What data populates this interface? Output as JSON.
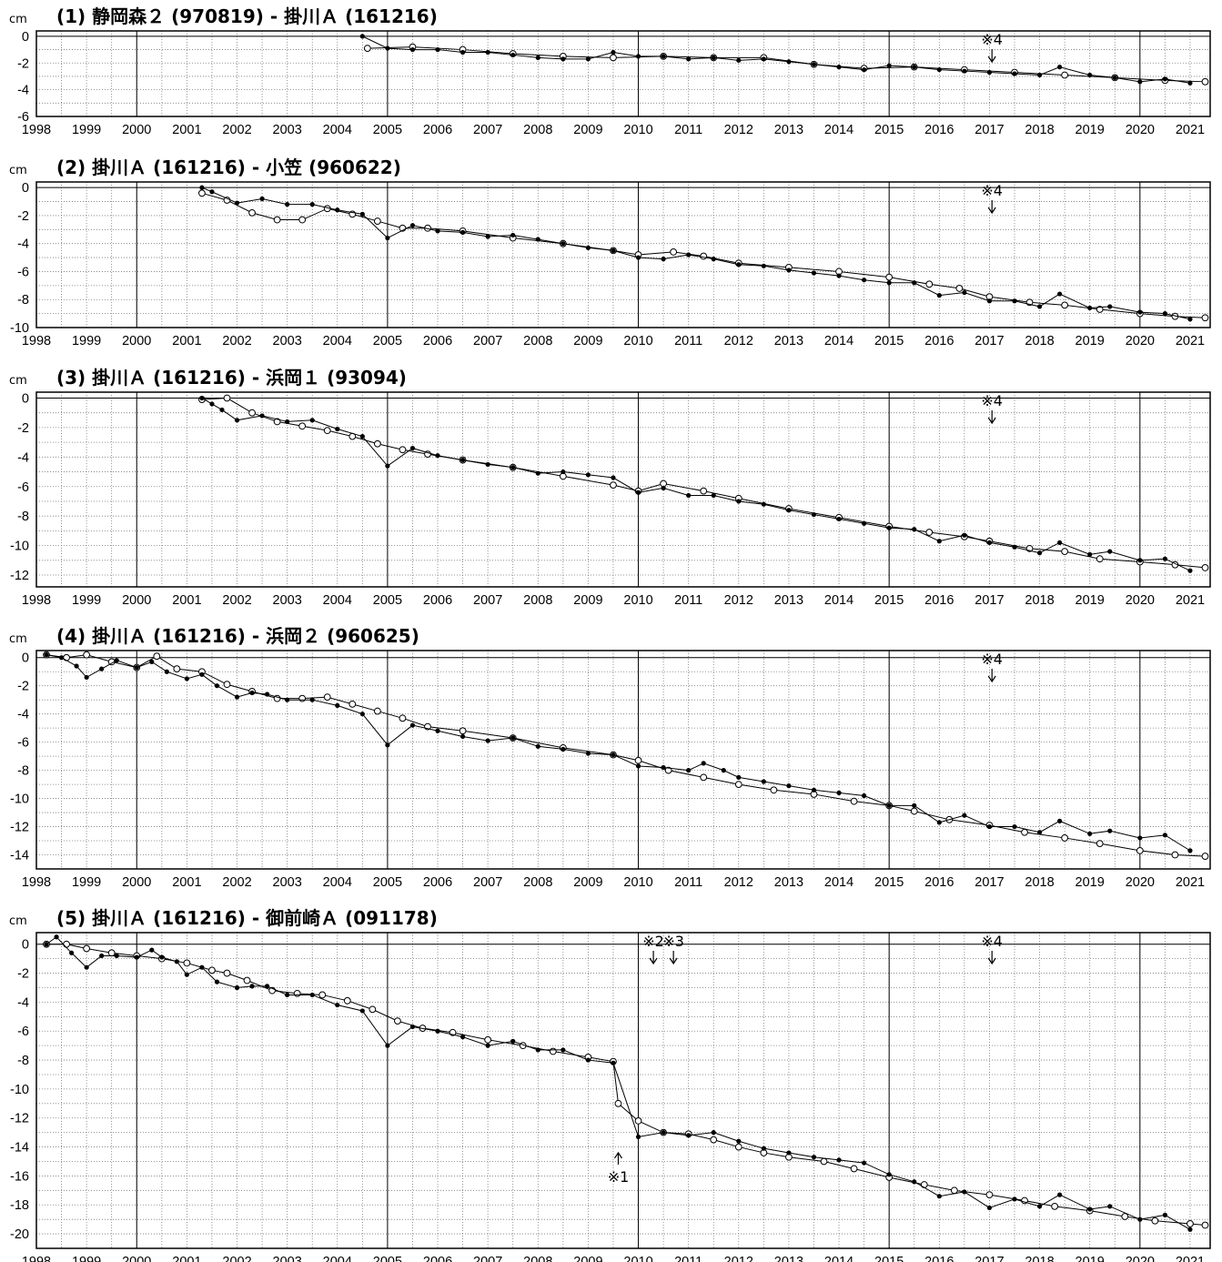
{
  "chart_data": [
    {
      "type": "line",
      "title": "(1) 静岡森２ (970819) - 掛川Ａ (161216)",
      "ylabel": "cm",
      "xlim": [
        1998,
        2021.4
      ],
      "ylim": [
        -6,
        0.4
      ],
      "yticks": [
        "0",
        "-2",
        "-4",
        "-6"
      ],
      "ytick_values": [
        0,
        -2,
        -4,
        -6
      ],
      "grid": true,
      "series": [
        {
          "marker": "open-circle",
          "x": [
            2004.6,
            2005.5,
            2006.5,
            2007.5,
            2008.5,
            2009.5,
            2010.5,
            2011.5,
            2012.5,
            2013.5,
            2014.5,
            2015.5,
            2016.5,
            2017.5,
            2018.5,
            2019.5,
            2020.5,
            2021.3
          ],
          "y": [
            -0.9,
            -0.8,
            -1.0,
            -1.3,
            -1.5,
            -1.6,
            -1.5,
            -1.6,
            -1.6,
            -2.1,
            -2.4,
            -2.3,
            -2.5,
            -2.7,
            -2.9,
            -3.1,
            -3.3,
            -3.4
          ]
        },
        {
          "marker": "filled-dot",
          "x": [
            2004.5,
            2005.0,
            2005.5,
            2006.0,
            2006.5,
            2007.0,
            2007.5,
            2008.0,
            2008.5,
            2009.0,
            2009.5,
            2010.0,
            2010.5,
            2011.0,
            2011.5,
            2012.0,
            2012.5,
            2013.0,
            2013.5,
            2014.0,
            2014.5,
            2015.0,
            2015.5,
            2016.0,
            2016.5,
            2017.0,
            2017.5,
            2018.0,
            2018.4,
            2019.0,
            2019.5,
            2020.0,
            2020.5,
            2021.0
          ],
          "y": [
            0.0,
            -0.9,
            -1.0,
            -1.0,
            -1.2,
            -1.2,
            -1.4,
            -1.6,
            -1.7,
            -1.7,
            -1.2,
            -1.5,
            -1.5,
            -1.7,
            -1.6,
            -1.8,
            -1.7,
            -1.9,
            -2.1,
            -2.3,
            -2.5,
            -2.2,
            -2.3,
            -2.5,
            -2.6,
            -2.7,
            -2.8,
            -2.9,
            -2.3,
            -2.9,
            -3.1,
            -3.4,
            -3.2,
            -3.5
          ]
        }
      ],
      "annotations": [
        {
          "text": "※4",
          "x": 2017.05,
          "direction": "down"
        }
      ]
    },
    {
      "type": "line",
      "title": "(2) 掛川Ａ (161216) - 小笠 (960622)",
      "ylabel": "cm",
      "xlim": [
        1998,
        2021.4
      ],
      "ylim": [
        -10,
        0.4
      ],
      "yticks": [
        "0",
        "-2",
        "-4",
        "-6",
        "-8",
        "-10"
      ],
      "ytick_values": [
        0,
        -2,
        -4,
        -6,
        -8,
        -10
      ],
      "grid": true,
      "series": [
        {
          "marker": "open-circle",
          "x": [
            2001.3,
            2001.8,
            2002.3,
            2002.8,
            2003.3,
            2003.8,
            2004.3,
            2004.8,
            2005.3,
            2005.8,
            2006.5,
            2007.5,
            2008.5,
            2009.5,
            2010.0,
            2010.7,
            2011.3,
            2012.0,
            2013.0,
            2014.0,
            2015.0,
            2015.8,
            2016.4,
            2017.0,
            2017.8,
            2018.5,
            2019.2,
            2020.0,
            2020.7,
            2021.3
          ],
          "y": [
            -0.4,
            -0.9,
            -1.8,
            -2.3,
            -2.3,
            -1.5,
            -1.9,
            -2.4,
            -2.9,
            -2.9,
            -3.1,
            -3.6,
            -4.0,
            -4.5,
            -4.8,
            -4.6,
            -4.9,
            -5.4,
            -5.7,
            -6.0,
            -6.4,
            -6.9,
            -7.2,
            -7.8,
            -8.2,
            -8.4,
            -8.7,
            -9.0,
            -9.2,
            -9.3
          ]
        },
        {
          "marker": "filled-dot",
          "x": [
            2001.3,
            2001.5,
            2002.0,
            2002.5,
            2003.0,
            2003.5,
            2004.0,
            2004.5,
            2005.0,
            2005.5,
            2006.0,
            2006.5,
            2007.0,
            2007.5,
            2008.0,
            2008.5,
            2009.0,
            2009.5,
            2010.0,
            2010.5,
            2011.0,
            2011.5,
            2012.0,
            2012.5,
            2013.0,
            2013.5,
            2014.0,
            2014.5,
            2015.0,
            2015.5,
            2016.0,
            2016.5,
            2017.0,
            2017.5,
            2018.0,
            2018.4,
            2019.0,
            2019.4,
            2020.0,
            2020.5,
            2021.0
          ],
          "y": [
            0.0,
            -0.3,
            -1.1,
            -0.8,
            -1.2,
            -1.2,
            -1.6,
            -1.9,
            -3.6,
            -2.7,
            -3.1,
            -3.2,
            -3.5,
            -3.4,
            -3.7,
            -4.0,
            -4.3,
            -4.5,
            -5.0,
            -5.1,
            -4.8,
            -5.1,
            -5.5,
            -5.6,
            -5.9,
            -6.1,
            -6.3,
            -6.6,
            -6.8,
            -6.8,
            -7.7,
            -7.5,
            -8.1,
            -8.1,
            -8.5,
            -7.6,
            -8.6,
            -8.5,
            -8.9,
            -9.0,
            -9.4
          ]
        }
      ],
      "annotations": [
        {
          "text": "※4",
          "x": 2017.05,
          "direction": "down"
        }
      ]
    },
    {
      "type": "line",
      "title": "(3) 掛川Ａ (161216) - 浜岡１ (93094)",
      "ylabel": "cm",
      "xlim": [
        1998,
        2021.4
      ],
      "ylim": [
        -12.8,
        0.4
      ],
      "yticks": [
        "0",
        "-2",
        "-4",
        "-6",
        "-8",
        "-10",
        "-12"
      ],
      "ytick_values": [
        0,
        -2,
        -4,
        -6,
        -8,
        -10,
        -12
      ],
      "grid": true,
      "series": [
        {
          "marker": "open-circle",
          "x": [
            2001.3,
            2001.8,
            2002.3,
            2002.8,
            2003.3,
            2003.8,
            2004.3,
            2004.8,
            2005.3,
            2005.8,
            2006.5,
            2007.5,
            2008.5,
            2009.5,
            2010.0,
            2010.5,
            2011.3,
            2012.0,
            2013.0,
            2014.0,
            2015.0,
            2015.8,
            2016.5,
            2017.0,
            2017.8,
            2018.5,
            2019.2,
            2020.0,
            2020.7,
            2021.3
          ],
          "y": [
            -0.1,
            0.0,
            -1.0,
            -1.6,
            -1.9,
            -2.2,
            -2.6,
            -3.1,
            -3.5,
            -3.8,
            -4.2,
            -4.7,
            -5.3,
            -5.9,
            -6.3,
            -5.8,
            -6.3,
            -6.8,
            -7.5,
            -8.1,
            -8.7,
            -9.1,
            -9.4,
            -9.7,
            -10.2,
            -10.4,
            -10.9,
            -11.1,
            -11.3,
            -11.5
          ]
        },
        {
          "marker": "filled-dot",
          "x": [
            2001.3,
            2001.5,
            2001.7,
            2002.0,
            2002.5,
            2003.0,
            2003.5,
            2004.0,
            2004.5,
            2005.0,
            2005.5,
            2006.0,
            2006.5,
            2007.0,
            2007.5,
            2008.0,
            2008.5,
            2009.0,
            2009.5,
            2010.0,
            2010.5,
            2011.0,
            2011.5,
            2012.0,
            2012.5,
            2013.0,
            2013.5,
            2014.0,
            2014.5,
            2015.0,
            2015.5,
            2016.0,
            2016.5,
            2017.0,
            2017.5,
            2018.0,
            2018.4,
            2019.0,
            2019.4,
            2020.0,
            2020.5,
            2021.0
          ],
          "y": [
            0.0,
            -0.4,
            -0.8,
            -1.5,
            -1.2,
            -1.6,
            -1.5,
            -2.1,
            -2.6,
            -4.6,
            -3.4,
            -3.9,
            -4.2,
            -4.5,
            -4.7,
            -5.1,
            -5.0,
            -5.2,
            -5.4,
            -6.4,
            -6.1,
            -6.6,
            -6.6,
            -7.0,
            -7.2,
            -7.6,
            -7.9,
            -8.2,
            -8.5,
            -8.8,
            -8.9,
            -9.7,
            -9.3,
            -9.8,
            -10.1,
            -10.5,
            -9.8,
            -10.6,
            -10.4,
            -11.0,
            -10.9,
            -11.7
          ]
        }
      ],
      "annotations": [
        {
          "text": "※4",
          "x": 2017.05,
          "direction": "down"
        }
      ]
    },
    {
      "type": "line",
      "title": "(4) 掛川Ａ (161216) - 浜岡２ (960625)",
      "ylabel": "cm",
      "xlim": [
        1998,
        2021.4
      ],
      "ylim": [
        -15,
        0.5
      ],
      "yticks": [
        "0",
        "-2",
        "-4",
        "-6",
        "-8",
        "-10",
        "-12",
        "-14"
      ],
      "ytick_values": [
        0,
        -2,
        -4,
        -6,
        -8,
        -10,
        -12,
        -14
      ],
      "grid": true,
      "series": [
        {
          "marker": "open-circle",
          "x": [
            1998.2,
            1998.6,
            1999.0,
            1999.5,
            2000.0,
            2000.4,
            2000.8,
            2001.3,
            2001.8,
            2002.3,
            2002.8,
            2003.3,
            2003.8,
            2004.3,
            2004.8,
            2005.3,
            2005.8,
            2006.5,
            2007.5,
            2008.5,
            2009.5,
            2010.0,
            2010.6,
            2011.3,
            2012.0,
            2012.7,
            2013.5,
            2014.3,
            2015.0,
            2015.5,
            2016.2,
            2017.0,
            2017.7,
            2018.5,
            2019.2,
            2020.0,
            2020.7,
            2021.3
          ],
          "y": [
            0.2,
            0.0,
            0.2,
            -0.3,
            -0.7,
            0.1,
            -0.8,
            -1.0,
            -1.9,
            -2.4,
            -2.9,
            -2.9,
            -2.8,
            -3.3,
            -3.8,
            -4.3,
            -4.9,
            -5.2,
            -5.7,
            -6.4,
            -6.9,
            -7.3,
            -8.0,
            -8.5,
            -9.0,
            -9.4,
            -9.7,
            -10.2,
            -10.5,
            -10.9,
            -11.5,
            -11.9,
            -12.4,
            -12.8,
            -13.2,
            -13.7,
            -14.0,
            -14.1
          ]
        },
        {
          "marker": "filled-dot",
          "x": [
            1998.2,
            1998.5,
            1998.8,
            1999.0,
            1999.3,
            1999.6,
            2000.0,
            2000.3,
            2000.6,
            2001.0,
            2001.3,
            2001.6,
            2002.0,
            2002.3,
            2002.6,
            2003.0,
            2003.5,
            2004.0,
            2004.5,
            2005.0,
            2005.5,
            2006.0,
            2006.5,
            2007.0,
            2007.5,
            2008.0,
            2008.5,
            2009.0,
            2009.5,
            2010.0,
            2010.5,
            2011.0,
            2011.3,
            2011.7,
            2012.0,
            2012.5,
            2013.0,
            2013.5,
            2014.0,
            2014.5,
            2015.0,
            2015.5,
            2016.0,
            2016.5,
            2017.0,
            2017.5,
            2018.0,
            2018.4,
            2019.0,
            2019.4,
            2020.0,
            2020.5,
            2021.0
          ],
          "y": [
            0.2,
            0.0,
            -0.6,
            -1.4,
            -0.8,
            -0.2,
            -0.7,
            -0.3,
            -1.0,
            -1.5,
            -1.2,
            -2.0,
            -2.8,
            -2.5,
            -2.6,
            -3.0,
            -3.0,
            -3.4,
            -4.0,
            -6.2,
            -4.8,
            -5.2,
            -5.6,
            -5.9,
            -5.7,
            -6.3,
            -6.5,
            -6.8,
            -6.9,
            -7.7,
            -7.8,
            -8.0,
            -7.5,
            -8.0,
            -8.5,
            -8.8,
            -9.1,
            -9.4,
            -9.6,
            -9.8,
            -10.5,
            -10.5,
            -11.7,
            -11.2,
            -12.0,
            -12.0,
            -12.4,
            -11.6,
            -12.5,
            -12.3,
            -12.8,
            -12.6,
            -13.7
          ]
        }
      ],
      "annotations": [
        {
          "text": "※4",
          "x": 2017.05,
          "direction": "down"
        }
      ]
    },
    {
      "type": "line",
      "title": "(5) 掛川Ａ (161216) - 御前崎Ａ (091178)",
      "ylabel": "cm",
      "xlim": [
        1998,
        2021.4
      ],
      "ylim": [
        -21,
        0.8
      ],
      "yticks": [
        "0",
        "-2",
        "-4",
        "-6",
        "-8",
        "-10",
        "-12",
        "-14",
        "-16",
        "-18",
        "-20"
      ],
      "ytick_values": [
        0,
        -2,
        -4,
        -6,
        -8,
        -10,
        -12,
        -14,
        -16,
        -18,
        -20
      ],
      "grid": true,
      "series": [
        {
          "marker": "open-circle",
          "x": [
            1998.2,
            1998.6,
            1999.0,
            1999.5,
            2000.0,
            2000.5,
            2001.0,
            2001.5,
            2001.8,
            2002.2,
            2002.7,
            2003.2,
            2003.7,
            2004.2,
            2004.7,
            2005.2,
            2005.7,
            2006.3,
            2007.0,
            2007.7,
            2008.3,
            2009.0,
            2009.5,
            2009.6,
            2010.0,
            2010.5,
            2011.0,
            2011.5,
            2012.0,
            2012.5,
            2013.0,
            2013.7,
            2014.3,
            2015.0,
            2015.7,
            2016.3,
            2017.0,
            2017.7,
            2018.3,
            2019.0,
            2019.7,
            2020.3,
            2021.0,
            2021.3
          ],
          "y": [
            0.0,
            0.0,
            -0.3,
            -0.6,
            -0.8,
            -1.0,
            -1.3,
            -1.8,
            -2.0,
            -2.5,
            -3.2,
            -3.4,
            -3.5,
            -3.9,
            -4.5,
            -5.3,
            -5.8,
            -6.1,
            -6.6,
            -7.0,
            -7.4,
            -7.8,
            -8.1,
            -11.0,
            -12.2,
            -13.0,
            -13.1,
            -13.5,
            -14.0,
            -14.4,
            -14.7,
            -15.0,
            -15.5,
            -16.1,
            -16.6,
            -17.0,
            -17.3,
            -17.7,
            -18.1,
            -18.4,
            -18.8,
            -19.1,
            -19.3,
            -19.4
          ]
        },
        {
          "marker": "filled-dot",
          "x": [
            1998.2,
            1998.4,
            1998.7,
            1999.0,
            1999.3,
            1999.6,
            2000.0,
            2000.3,
            2000.5,
            2000.8,
            2001.0,
            2001.3,
            2001.6,
            2002.0,
            2002.3,
            2002.6,
            2003.0,
            2003.5,
            2004.0,
            2004.5,
            2005.0,
            2005.5,
            2006.0,
            2006.5,
            2007.0,
            2007.5,
            2008.0,
            2008.5,
            2009.0,
            2009.5,
            2010.0,
            2010.5,
            2011.0,
            2011.5,
            2012.0,
            2012.5,
            2013.0,
            2013.5,
            2014.0,
            2014.5,
            2015.0,
            2015.5,
            2016.0,
            2016.5,
            2017.0,
            2017.5,
            2018.0,
            2018.4,
            2019.0,
            2019.4,
            2020.0,
            2020.5,
            2021.0
          ],
          "y": [
            0.0,
            0.5,
            -0.6,
            -1.6,
            -0.8,
            -0.8,
            -0.9,
            -0.4,
            -0.9,
            -1.2,
            -2.1,
            -1.6,
            -2.6,
            -3.0,
            -2.9,
            -2.9,
            -3.5,
            -3.5,
            -4.2,
            -4.6,
            -7.0,
            -5.7,
            -6.0,
            -6.4,
            -7.0,
            -6.7,
            -7.3,
            -7.3,
            -8.0,
            -8.2,
            -13.3,
            -13.0,
            -13.2,
            -13.0,
            -13.6,
            -14.1,
            -14.4,
            -14.7,
            -14.9,
            -15.1,
            -15.9,
            -16.4,
            -17.4,
            -17.1,
            -18.2,
            -17.6,
            -18.1,
            -17.3,
            -18.3,
            -18.1,
            -19.0,
            -18.7,
            -19.7
          ]
        }
      ],
      "annotations": [
        {
          "text": "※1",
          "x": 2009.6,
          "direction": "up"
        },
        {
          "text": "※2",
          "x": 2010.3,
          "direction": "down"
        },
        {
          "text": "※3",
          "x": 2010.7,
          "direction": "down"
        },
        {
          "text": "※4",
          "x": 2017.05,
          "direction": "down"
        }
      ]
    }
  ],
  "xticks": [
    "1998",
    "1999",
    "2000",
    "2001",
    "2002",
    "2003",
    "2004",
    "2005",
    "2006",
    "2007",
    "2008",
    "2009",
    "2010",
    "2011",
    "2012",
    "2013",
    "2014",
    "2015",
    "2016",
    "2017",
    "2018",
    "2019",
    "2020",
    "2021"
  ],
  "xtick_values": [
    1998,
    1999,
    2000,
    2001,
    2002,
    2003,
    2004,
    2005,
    2006,
    2007,
    2008,
    2009,
    2010,
    2011,
    2012,
    2013,
    2014,
    2015,
    2016,
    2017,
    2018,
    2019,
    2020,
    2021
  ],
  "major_vlines": [
    2000,
    2005,
    2010,
    2015,
    2020
  ]
}
